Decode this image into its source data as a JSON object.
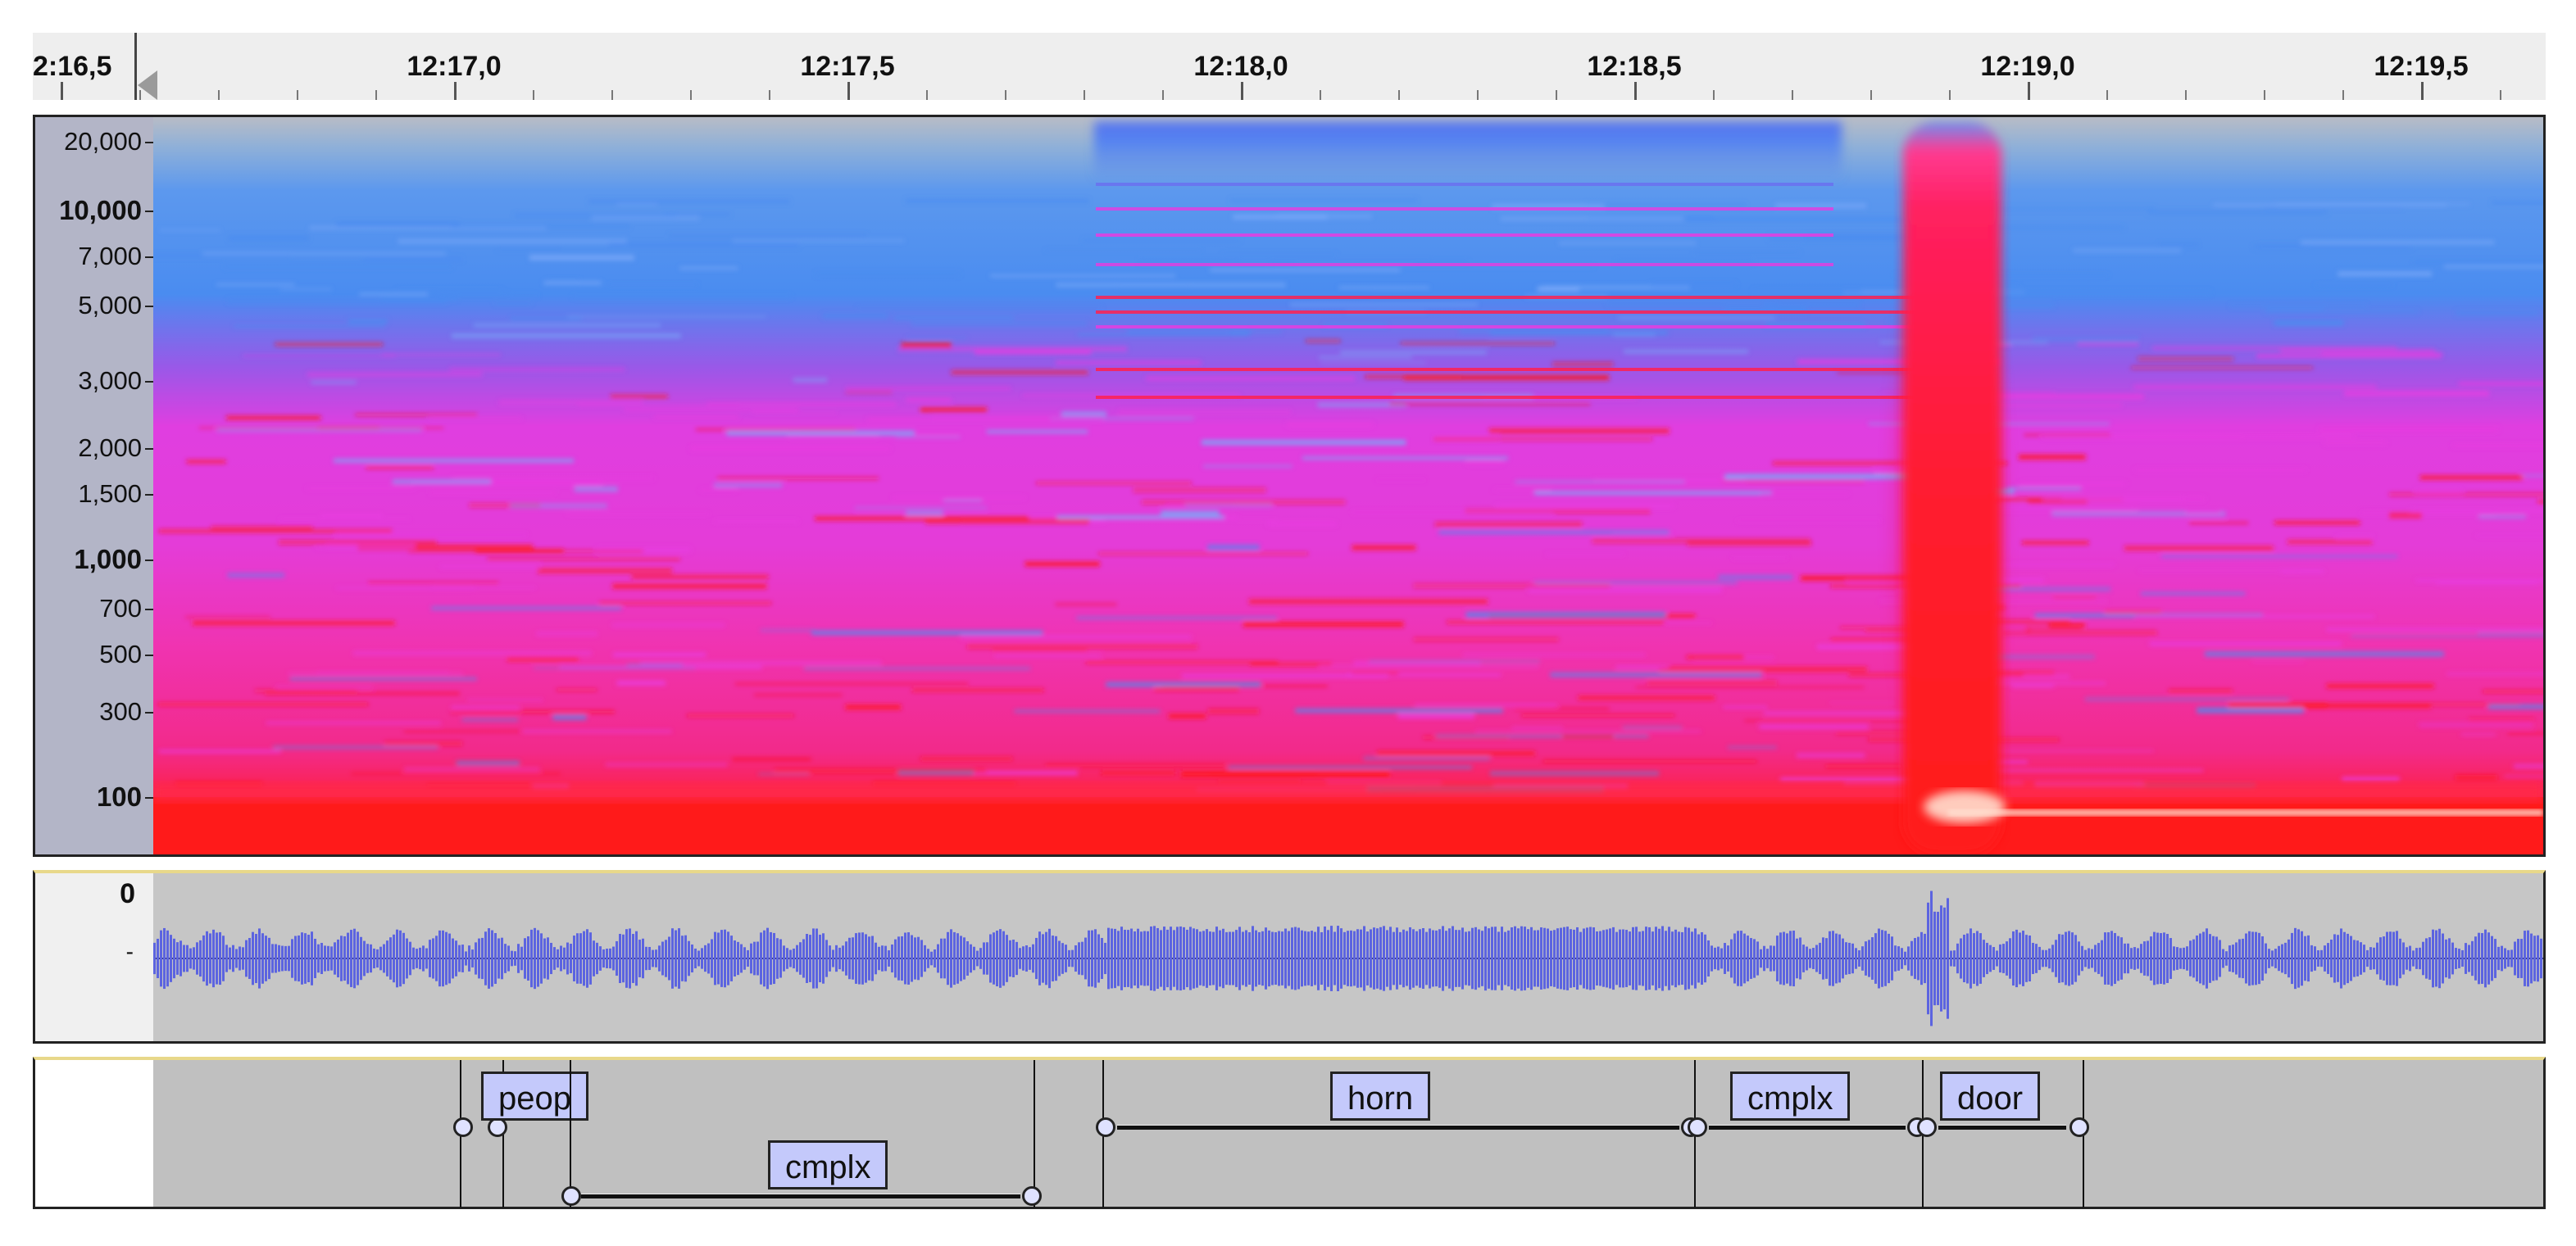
{
  "ruler": {
    "ticks": [
      "2:16,5",
      "12:17,0",
      "12:17,5",
      "12:18,0",
      "12:18,5",
      "12:19,0",
      "12:19,5"
    ]
  },
  "spectrogram": {
    "freq_labels": [
      "20,000",
      "10,000",
      "7,000",
      "5,000",
      "3,000",
      "2,000",
      "1,500",
      "1,000",
      "700",
      "500",
      "300",
      "100"
    ],
    "colors": {
      "low": "#4a8cf0",
      "mid": "#e83ce0",
      "high": "#ff1a1a",
      "peak": "#ffe0d0"
    }
  },
  "waveform": {
    "scale_top": "0",
    "scale_mid": "-",
    "color": "#5c64e0"
  },
  "labels": [
    {
      "text": "peop"
    },
    {
      "text": "cmplx"
    },
    {
      "text": "horn"
    },
    {
      "text": "cmplx"
    },
    {
      "text": "door"
    }
  ]
}
